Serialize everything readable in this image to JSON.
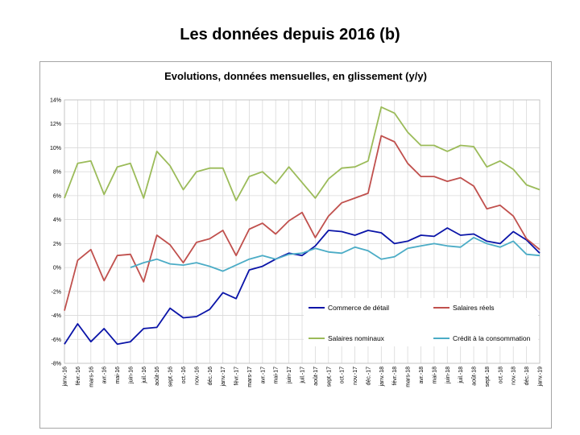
{
  "slide": {
    "title": "Les données depuis 2016 (b)"
  },
  "chart_data": {
    "type": "line",
    "title": "Evolutions, données mensuelles, en glissement (y/y)",
    "xlabel": "",
    "ylabel": "",
    "ylim": [
      -0.08,
      0.14
    ],
    "ytick_labels": [
      "14%",
      "12%",
      "10%",
      "8%",
      "6%",
      "4%",
      "2%",
      "0%",
      "-2%",
      "-4%",
      "-6%",
      "-8%"
    ],
    "grid": true,
    "legend_position": "lower-right inside",
    "x": [
      "janv.-16",
      "févr.-16",
      "mars-16",
      "avr.-16",
      "mai-16",
      "juin-16",
      "juil.-16",
      "août-16",
      "sept.-16",
      "oct.-16",
      "nov.-16",
      "déc.-16",
      "janv.-17",
      "févr.-17",
      "mars-17",
      "avr.-17",
      "mai-17",
      "juin-17",
      "juil.-17",
      "août-17",
      "sept.-17",
      "oct.-17",
      "nov.-17",
      "déc.-17",
      "janv.-18",
      "févr.-18",
      "mars-18",
      "avr.-18",
      "mai-18",
      "juin-18",
      "juil.-18",
      "août-18",
      "sept.-18",
      "oct.-18",
      "nov.-18",
      "déc.-18",
      "janv.-19"
    ],
    "series": [
      {
        "name": "Commerce de détail",
        "color": "#0a14a8",
        "values": [
          -6.4,
          -4.7,
          -6.2,
          -5.1,
          -6.4,
          -6.2,
          -5.1,
          -5.0,
          -3.4,
          -4.2,
          -4.1,
          -3.5,
          -2.1,
          -2.6,
          -0.2,
          0.1,
          0.7,
          1.2,
          1.0,
          1.8,
          3.1,
          3.0,
          2.7,
          3.1,
          2.9,
          2.0,
          2.2,
          2.7,
          2.6,
          3.3,
          2.7,
          2.8,
          2.2,
          2.0,
          3.0,
          2.3,
          1.2
        ]
      },
      {
        "name": "Salaires réels",
        "color": "#c0504d",
        "values": [
          -3.6,
          0.6,
          1.5,
          -1.1,
          1.0,
          1.1,
          -1.2,
          2.7,
          1.9,
          0.4,
          2.1,
          2.4,
          3.1,
          1.0,
          3.2,
          3.7,
          2.8,
          3.9,
          4.6,
          2.5,
          4.3,
          5.4,
          5.8,
          6.2,
          11.0,
          10.5,
          8.7,
          7.6,
          7.6,
          7.2,
          7.5,
          6.8,
          4.9,
          5.2,
          4.3,
          2.4,
          1.5
        ]
      },
      {
        "name": "Salaires nominaux",
        "color": "#9bbb59",
        "values": [
          5.8,
          8.7,
          8.9,
          6.1,
          8.4,
          8.7,
          5.8,
          9.7,
          8.5,
          6.5,
          8.0,
          8.3,
          8.3,
          5.6,
          7.6,
          8.0,
          7.0,
          8.4,
          7.1,
          5.8,
          7.4,
          8.3,
          8.4,
          8.9,
          13.4,
          12.9,
          11.3,
          10.2,
          10.2,
          9.7,
          10.2,
          10.1,
          8.4,
          8.9,
          8.2,
          6.9,
          6.5
        ]
      },
      {
        "name": "Crédit à la consommation",
        "color": "#4bacc6",
        "values": [
          null,
          null,
          null,
          null,
          null,
          0.0,
          0.4,
          0.7,
          0.3,
          0.2,
          0.4,
          0.1,
          -0.3,
          0.2,
          0.7,
          1.0,
          0.7,
          1.1,
          1.2,
          1.6,
          1.3,
          1.2,
          1.7,
          1.4,
          0.7,
          0.9,
          1.6,
          1.8,
          2.0,
          1.8,
          1.7,
          2.5,
          2.0,
          1.7,
          2.2,
          1.1,
          1.0
        ]
      }
    ]
  }
}
